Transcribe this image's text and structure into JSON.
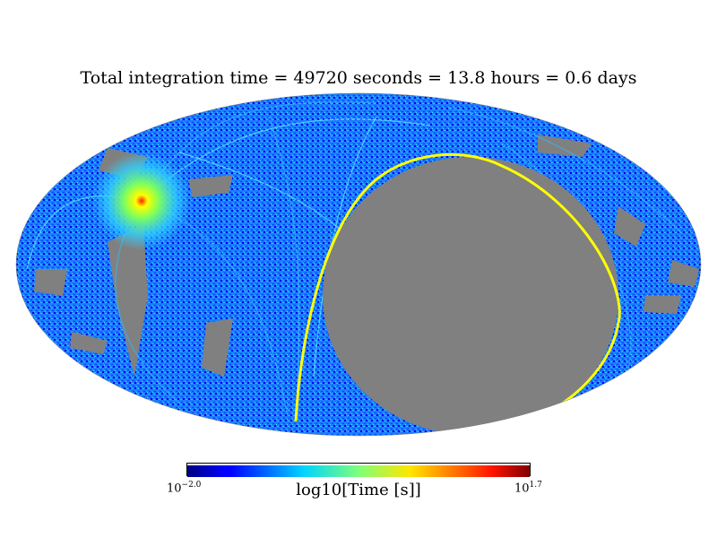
{
  "title": "Total integration time = 49720 seconds = 13.8 hours = 0.6 days",
  "colorbar": {
    "min_base": "10",
    "min_exp": "−2.0",
    "max_base": "10",
    "max_exp": "1.7",
    "label": "log10[Time [s]]",
    "colormap": "jet"
  },
  "map": {
    "projection": "mollweide",
    "colors": {
      "unobserved": "#808080",
      "low": "#0000ff",
      "mid": "#00bfff",
      "high": "#ffff00",
      "max": "#ff0000"
    }
  }
}
